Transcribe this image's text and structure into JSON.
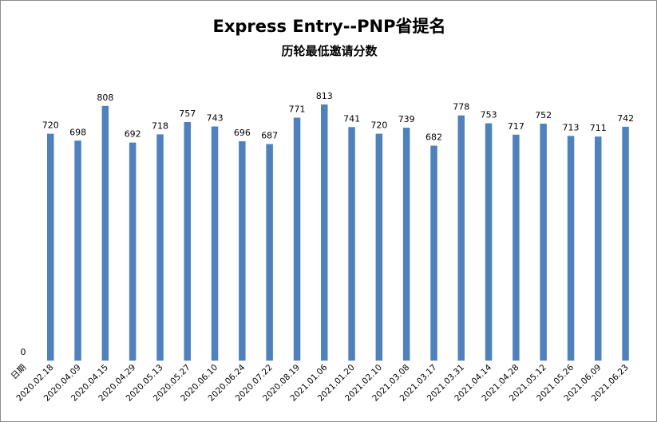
{
  "chart_data": {
    "type": "bar",
    "title": "Express Entry--PNP省提名",
    "subtitle": "历轮最低邀请分数",
    "categories": [
      "日期",
      "2020.02.18",
      "2020.04.09",
      "2020.04.15",
      "2020.04.29",
      "2020.05.13",
      "2020.05.27",
      "2020.06.10",
      "2020.06.24",
      "2020.07.22",
      "2020.08.19",
      "2021.01.06",
      "2021.01.20",
      "2021.02.10",
      "2021.03.08",
      "2021.03.17",
      "2021.03.31",
      "2021.04.14",
      "2021.04.28",
      "2021.05.12",
      "2021.05.26",
      "2021.06.09",
      "2021.06.23"
    ],
    "values": [
      0,
      720,
      698,
      808,
      692,
      718,
      757,
      743,
      696,
      687,
      771,
      813,
      741,
      720,
      739,
      682,
      778,
      753,
      717,
      752,
      713,
      711,
      742
    ],
    "bar_color": "#4f81bd",
    "ylim": [
      0,
      900
    ],
    "grid": false,
    "legend": "none"
  }
}
